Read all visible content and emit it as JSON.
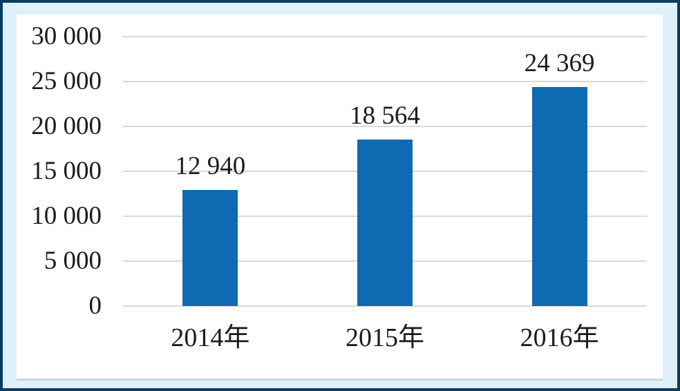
{
  "colors": {
    "bar": "#0e6bb2",
    "frame_border": "#0c3c60",
    "frame_background": "#def0fa",
    "panel_background": "#ffffff",
    "panel_bottom_shadow": "#ccd4d9",
    "gridline": "#d8d8d8",
    "text": "#1b1b1b"
  },
  "chart_data": {
    "type": "bar",
    "title": "",
    "xlabel": "",
    "ylabel": "",
    "categories": [
      "2014年",
      "2015年",
      "2016年"
    ],
    "values": [
      12940,
      18564,
      24369
    ],
    "value_labels": [
      "12 940",
      "18 564",
      "24 369"
    ],
    "y_ticks": [
      0,
      5000,
      10000,
      15000,
      20000,
      25000,
      30000
    ],
    "y_tick_labels": [
      "0",
      "5 000",
      "10 000",
      "15 000",
      "20 000",
      "25 000",
      "30 000"
    ],
    "ylim": [
      0,
      30000
    ],
    "grid": true,
    "legend": "none"
  }
}
